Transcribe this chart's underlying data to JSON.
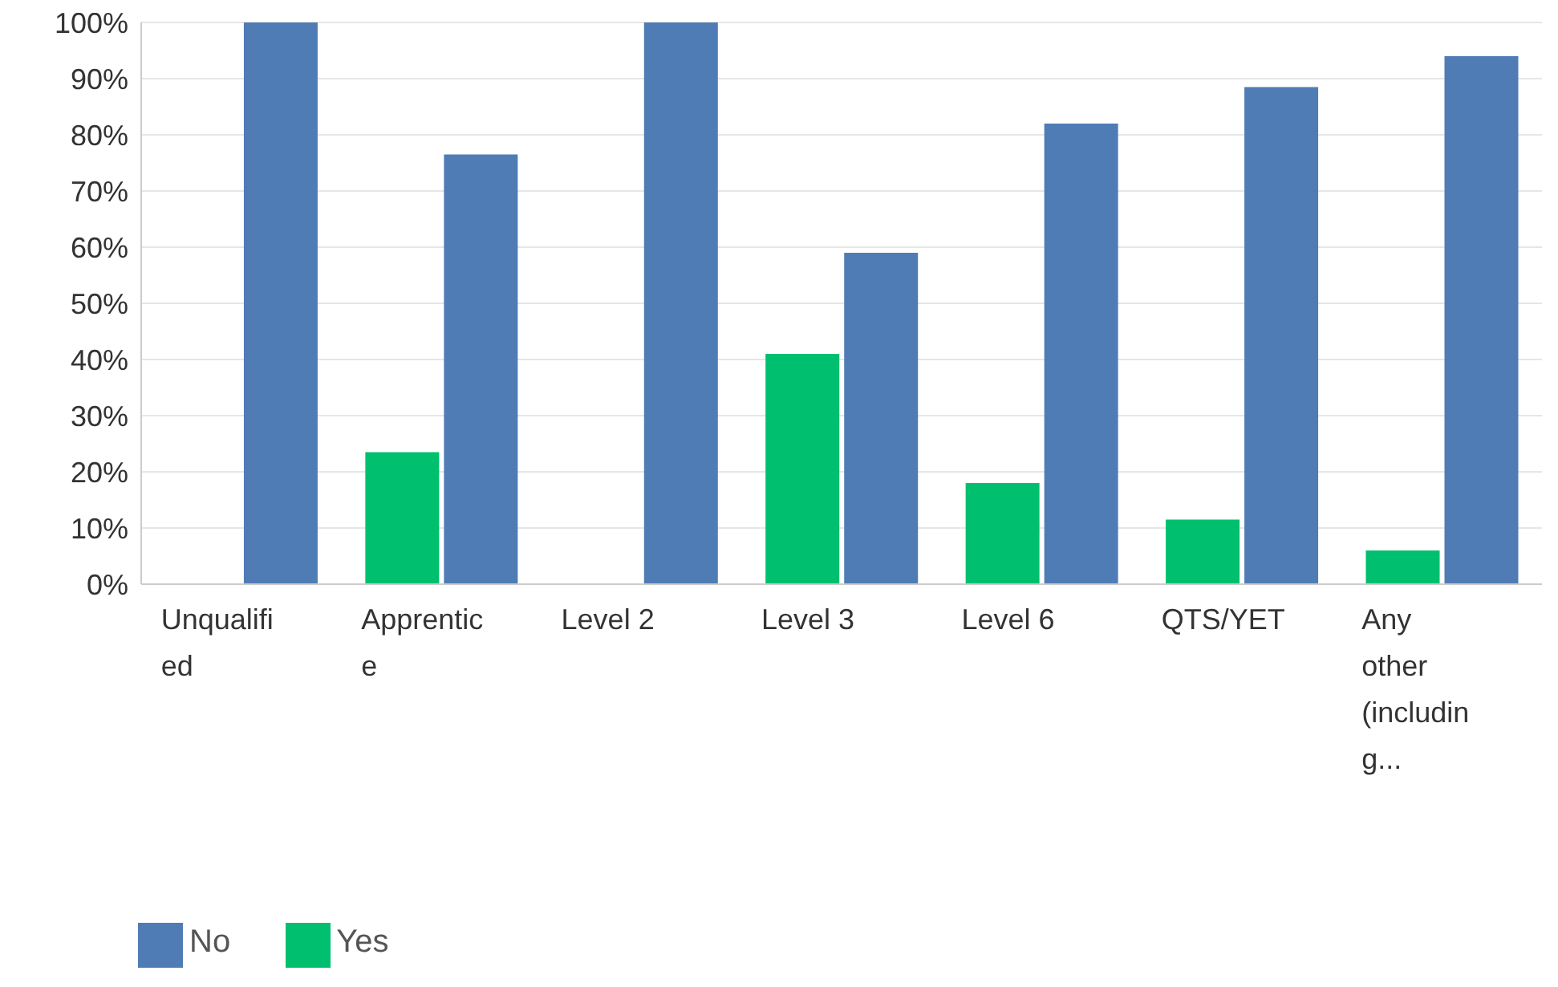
{
  "chart_data": {
    "type": "bar",
    "categories": [
      "Unqualified",
      "Apprentice",
      "Level 2",
      "Level 3",
      "Level 6",
      "QTS/YET",
      "Any other (including..."
    ],
    "series": [
      {
        "name": "Yes",
        "color": "#00bf6f",
        "values": [
          0,
          23.5,
          0,
          41,
          18,
          11.5,
          6
        ]
      },
      {
        "name": "No",
        "color": "#507cb6",
        "values": [
          100,
          76.5,
          100,
          59,
          82,
          88.5,
          94
        ]
      }
    ],
    "ylim": [
      0,
      100
    ],
    "yticks": [
      {
        "value": 0,
        "label": "0%"
      },
      {
        "value": 10,
        "label": "10%"
      },
      {
        "value": 20,
        "label": "20%"
      },
      {
        "value": 30,
        "label": "30%"
      },
      {
        "value": 40,
        "label": "40%"
      },
      {
        "value": 50,
        "label": "50%"
      },
      {
        "value": 60,
        "label": "60%"
      },
      {
        "value": 70,
        "label": "70%"
      },
      {
        "value": 80,
        "label": "80%"
      },
      {
        "value": 90,
        "label": "90%"
      },
      {
        "value": 100,
        "label": "100%"
      }
    ],
    "grid": "y",
    "legend": "bottom left"
  }
}
